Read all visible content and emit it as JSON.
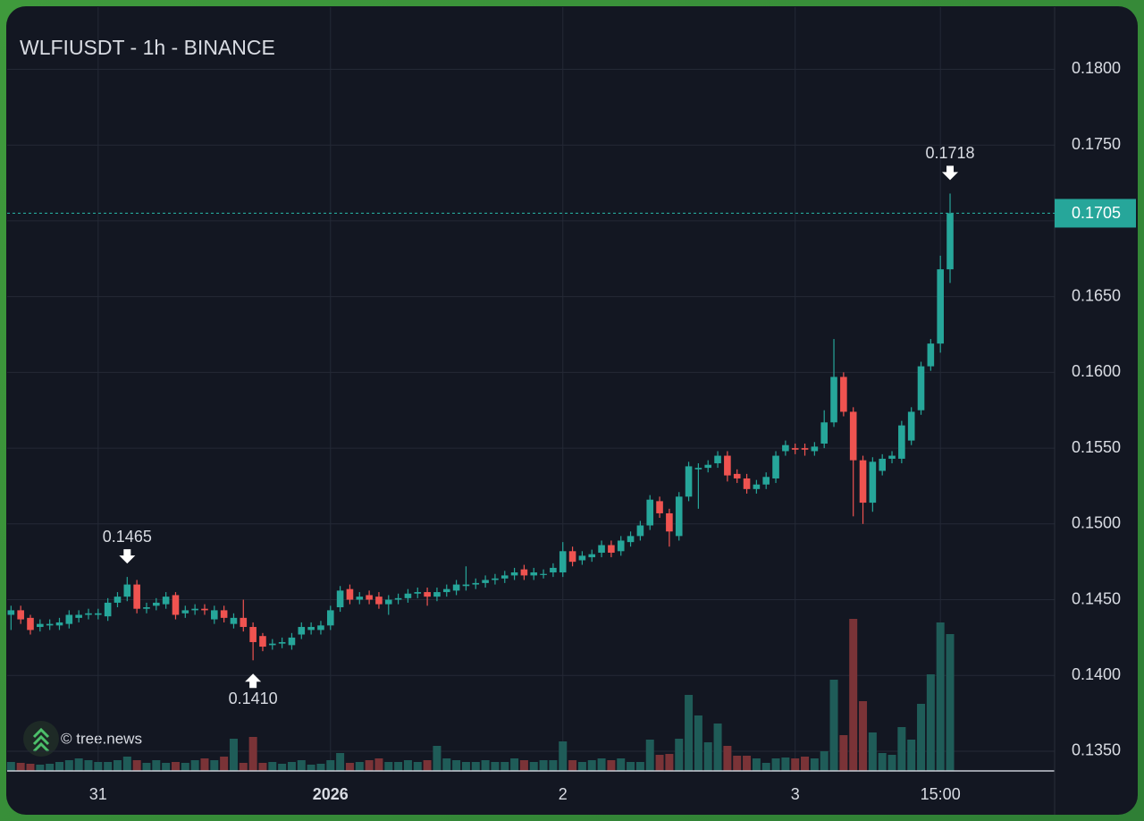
{
  "chart_data": {
    "type": "candlestick",
    "title": "WLFIUSDT - 1h - BINANCE",
    "watermark": "© tree.news",
    "up_color": "#26a69a",
    "down_color": "#ef5350",
    "up_volume_color": "#1f5c58",
    "down_volume_color": "#7a3337",
    "grid": true,
    "xlim": [
      -9.4,
      98.8
    ],
    "ylim": [
      0.1337,
      0.1841
    ],
    "xticks": [
      {
        "value": 0,
        "label": "31"
      },
      {
        "value": 24,
        "label": "2026"
      },
      {
        "value": 48,
        "label": "2"
      },
      {
        "value": 72,
        "label": "3"
      },
      {
        "value": 87,
        "label": "15:00"
      }
    ],
    "yticks": [
      {
        "value": 0.18,
        "label": "0.1800"
      },
      {
        "value": 0.175,
        "label": "0.1750"
      },
      {
        "value": 0.17,
        "label": "0.1700"
      },
      {
        "value": 0.165,
        "label": "0.1650"
      },
      {
        "value": 0.16,
        "label": "0.1600"
      },
      {
        "value": 0.155,
        "label": "0.1550"
      },
      {
        "value": 0.15,
        "label": "0.1500"
      },
      {
        "value": 0.145,
        "label": "0.1450"
      },
      {
        "value": 0.14,
        "label": "0.1400"
      },
      {
        "value": 0.135,
        "label": "0.1350"
      }
    ],
    "last_price": 0.1705,
    "annotations": [
      {
        "x": 3,
        "value": 0.1465,
        "label": "0.1465",
        "direction": "down"
      },
      {
        "x": 16,
        "value": 0.141,
        "label": "0.1410",
        "direction": "up"
      },
      {
        "x": 88,
        "value": 0.1718,
        "label": "0.1718",
        "direction": "down"
      }
    ],
    "x": [
      -9,
      -8,
      -7,
      -6,
      -5,
      -4,
      -3,
      -2,
      -1,
      0,
      1,
      2,
      3,
      4,
      5,
      6,
      7,
      8,
      9,
      10,
      11,
      12,
      13,
      14,
      15,
      16,
      17,
      18,
      19,
      20,
      21,
      22,
      23,
      24,
      25,
      26,
      27,
      28,
      29,
      30,
      31,
      32,
      33,
      34,
      35,
      36,
      37,
      38,
      39,
      40,
      41,
      42,
      43,
      44,
      45,
      46,
      47,
      48,
      49,
      50,
      51,
      52,
      53,
      54,
      55,
      56,
      57,
      58,
      59,
      60,
      61,
      62,
      63,
      64,
      65,
      66,
      67,
      68,
      69,
      70,
      71,
      72,
      73,
      74,
      75,
      76,
      77,
      78,
      79,
      80,
      81,
      82,
      83,
      84,
      85,
      86,
      87,
      88
    ],
    "open": [
      0.144,
      0.1443,
      0.1438,
      0.1432,
      0.1433,
      0.1433,
      0.1434,
      0.1438,
      0.144,
      0.144,
      0.1439,
      0.1448,
      0.1452,
      0.146,
      0.1444,
      0.1446,
      0.1447,
      0.1453,
      0.1441,
      0.1443,
      0.1444,
      0.1437,
      0.1443,
      0.1434,
      0.1438,
      0.1432,
      0.1426,
      0.142,
      0.1421,
      0.142,
      0.1427,
      0.143,
      0.143,
      0.1433,
      0.1445,
      0.1457,
      0.145,
      0.1453,
      0.1452,
      0.1447,
      0.145,
      0.1451,
      0.1454,
      0.1455,
      0.1452,
      0.1455,
      0.1456,
      0.1459,
      0.146,
      0.1461,
      0.1463,
      0.1464,
      0.1466,
      0.147,
      0.1466,
      0.1467,
      0.1468,
      0.1468,
      0.1482,
      0.1476,
      0.1478,
      0.1481,
      0.1486,
      0.1482,
      0.1488,
      0.1492,
      0.1499,
      0.1515,
      0.1507,
      0.1492,
      0.1518,
      0.1536,
      0.1537,
      0.154,
      0.1545,
      0.1533,
      0.153,
      0.1523,
      0.1526,
      0.153,
      0.1548,
      0.155,
      0.155,
      0.1548,
      0.1553,
      0.1567,
      0.1597,
      0.1574,
      0.1542,
      0.1514,
      0.1535,
      0.1543,
      0.1543,
      0.1555,
      0.1575,
      0.1604,
      0.1619,
      0.1668
    ],
    "high": [
      0.1446,
      0.1446,
      0.144,
      0.1437,
      0.1437,
      0.1438,
      0.1443,
      0.1443,
      0.1444,
      0.1444,
      0.1451,
      0.1455,
      0.1465,
      0.1463,
      0.1448,
      0.1451,
      0.1455,
      0.1455,
      0.1446,
      0.1447,
      0.1447,
      0.1446,
      0.1446,
      0.1441,
      0.145,
      0.1435,
      0.1428,
      0.1424,
      0.1425,
      0.1428,
      0.1435,
      0.1435,
      0.1436,
      0.1446,
      0.1459,
      0.146,
      0.1455,
      0.1456,
      0.1455,
      0.1453,
      0.1454,
      0.1457,
      0.1458,
      0.1458,
      0.1458,
      0.146,
      0.1463,
      0.1472,
      0.1464,
      0.1466,
      0.1467,
      0.1469,
      0.1471,
      0.1473,
      0.1471,
      0.147,
      0.1474,
      0.1488,
      0.1485,
      0.1482,
      0.1483,
      0.1489,
      0.1489,
      0.1492,
      0.1495,
      0.1502,
      0.1519,
      0.1518,
      0.151,
      0.1521,
      0.1541,
      0.154,
      0.1542,
      0.1548,
      0.1548,
      0.1536,
      0.1533,
      0.1529,
      0.1534,
      0.1548,
      0.1555,
      0.1553,
      0.1553,
      0.1554,
      0.1575,
      0.1622,
      0.16,
      0.1577,
      0.1545,
      0.1544,
      0.1546,
      0.1548,
      0.1568,
      0.1577,
      0.1607,
      0.1622,
      0.1677,
      0.1718
    ],
    "low": [
      0.143,
      0.1434,
      0.1427,
      0.1429,
      0.143,
      0.143,
      0.1431,
      0.1435,
      0.1437,
      0.1437,
      0.1436,
      0.1445,
      0.1449,
      0.1441,
      0.1441,
      0.1443,
      0.1444,
      0.1437,
      0.1438,
      0.144,
      0.144,
      0.1434,
      0.1435,
      0.1431,
      0.1429,
      0.141,
      0.1416,
      0.1417,
      0.1418,
      0.1417,
      0.1424,
      0.1427,
      0.1427,
      0.143,
      0.1442,
      0.1447,
      0.1447,
      0.1447,
      0.1444,
      0.144,
      0.1447,
      0.1448,
      0.1451,
      0.1446,
      0.1449,
      0.1452,
      0.1453,
      0.1456,
      0.1457,
      0.1458,
      0.146,
      0.1461,
      0.1463,
      0.1463,
      0.1463,
      0.1464,
      0.1465,
      0.1465,
      0.1472,
      0.1473,
      0.1475,
      0.1478,
      0.1478,
      0.1479,
      0.1485,
      0.1489,
      0.1496,
      0.1504,
      0.1485,
      0.1489,
      0.1515,
      0.151,
      0.1534,
      0.1537,
      0.1528,
      0.1527,
      0.152,
      0.152,
      0.1523,
      0.1527,
      0.1545,
      0.1546,
      0.1545,
      0.1545,
      0.155,
      0.1564,
      0.1571,
      0.1505,
      0.15,
      0.1508,
      0.1532,
      0.154,
      0.154,
      0.1552,
      0.1572,
      0.1601,
      0.1613,
      0.1659
    ],
    "close": [
      0.1443,
      0.1437,
      0.143,
      0.1434,
      0.1434,
      0.1435,
      0.144,
      0.144,
      0.1441,
      0.1441,
      0.1448,
      0.1452,
      0.146,
      0.1444,
      0.1445,
      0.1448,
      0.1452,
      0.144,
      0.1443,
      0.1444,
      0.1443,
      0.1443,
      0.1438,
      0.1438,
      0.1432,
      0.1422,
      0.1419,
      0.1421,
      0.1422,
      0.1425,
      0.1432,
      0.1432,
      0.1433,
      0.1443,
      0.1456,
      0.145,
      0.1452,
      0.145,
      0.1447,
      0.145,
      0.1451,
      0.1454,
      0.1455,
      0.1452,
      0.1455,
      0.1457,
      0.146,
      0.146,
      0.1461,
      0.1463,
      0.1464,
      0.1466,
      0.1468,
      0.1466,
      0.1468,
      0.1467,
      0.1471,
      0.1482,
      0.1475,
      0.1479,
      0.148,
      0.1486,
      0.1481,
      0.1489,
      0.1492,
      0.1499,
      0.1516,
      0.1507,
      0.1495,
      0.1518,
      0.1538,
      0.1537,
      0.1539,
      0.1545,
      0.1532,
      0.153,
      0.1523,
      0.1526,
      0.1531,
      0.1545,
      0.1552,
      0.1549,
      0.1549,
      0.1551,
      0.1567,
      0.1597,
      0.1574,
      0.1542,
      0.1514,
      0.1541,
      0.1543,
      0.1545,
      0.1565,
      0.1574,
      0.1604,
      0.1619,
      0.1668,
      0.1705
    ],
    "volume": [
      10,
      9,
      8,
      7,
      8,
      10,
      12,
      14,
      12,
      10,
      10,
      12,
      16,
      12,
      9,
      12,
      9,
      10,
      9,
      12,
      14,
      12,
      16,
      36,
      9,
      38,
      9,
      10,
      8,
      10,
      12,
      7,
      8,
      12,
      20,
      9,
      10,
      12,
      14,
      10,
      10,
      12,
      10,
      12,
      28,
      14,
      12,
      10,
      10,
      12,
      10,
      10,
      14,
      12,
      10,
      12,
      12,
      33,
      12,
      10,
      12,
      14,
      12,
      14,
      10,
      10,
      35,
      18,
      19,
      36,
      85,
      62,
      32,
      53,
      28,
      17,
      17,
      14,
      9,
      14,
      15,
      14,
      16,
      14,
      22,
      102,
      40,
      170,
      78,
      43,
      20,
      18,
      49,
      35,
      75,
      108,
      166,
      153
    ]
  }
}
